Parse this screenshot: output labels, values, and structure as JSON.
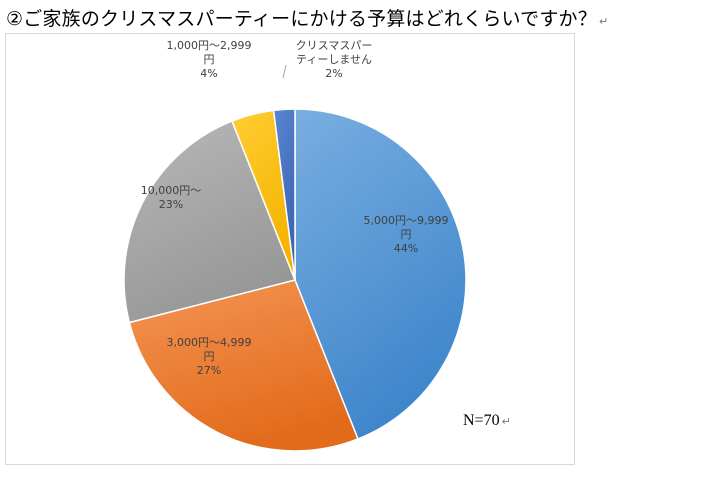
{
  "title": "②ご家族のクリスマスパーティーにかける予算はどれくらいですか？",
  "return_mark": "↵",
  "sample_note": "N=70",
  "colors": {
    "blue": "#5b9bd5",
    "orange": "#ed7d31",
    "gray": "#a5a5a5",
    "yellow": "#ffc000",
    "darkblue": "#4472c4"
  },
  "chart_data": {
    "type": "pie",
    "start_angle_deg": 0,
    "direction": "clockwise",
    "slices": [
      {
        "label_lines": [
          "5,000円～9,999",
          "円"
        ],
        "value": 44,
        "value_label": "44%",
        "color": "#5b9bd5"
      },
      {
        "label_lines": [
          "3,000円～4,999",
          "円"
        ],
        "value": 27,
        "value_label": "27%",
        "color": "#ed7d31"
      },
      {
        "label_lines": [
          "10,000円～"
        ],
        "value": 23,
        "value_label": "23%",
        "color": "#a5a5a5"
      },
      {
        "label_lines": [
          "1,000円～2,999",
          "円"
        ],
        "value": 4,
        "value_label": "4%",
        "color": "#ffc000"
      },
      {
        "label_lines": [
          "クリスマスパー",
          "ティーしません"
        ],
        "value": 2,
        "value_label": "2%",
        "color": "#4472c4"
      }
    ]
  }
}
